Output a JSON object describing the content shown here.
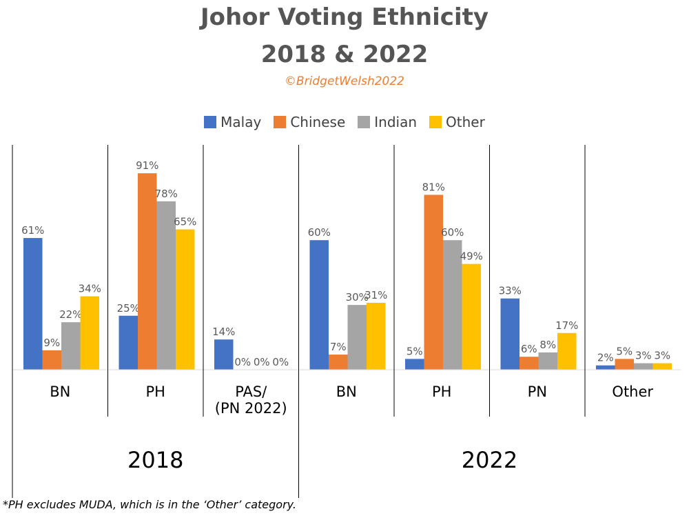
{
  "title_line1": "Johor Voting Ethnicity",
  "title_line2": "2018 & 2022",
  "credit": "©BridgetWelsh2022",
  "footnote": "*PH excludes MUDA, which is in the ‘Other’ category.",
  "colors": {
    "Malay": "#4472C4",
    "Chinese": "#ED7D31",
    "Indian": "#A5A5A5",
    "Other": "#FFC000"
  },
  "chart_data": {
    "type": "bar",
    "title": "Johor Voting Ethnicity 2018 & 2022",
    "series_names": [
      "Malay",
      "Chinese",
      "Indian",
      "Other"
    ],
    "groups": [
      {
        "label": "2018",
        "categories": [
          {
            "label": [
              "BN"
            ],
            "values": [
              61,
              9,
              22,
              34
            ]
          },
          {
            "label": [
              "PH"
            ],
            "values": [
              25,
              91,
              78,
              65
            ]
          },
          {
            "label": [
              "PAS/",
              "(PN 2022)"
            ],
            "values": [
              14,
              0,
              0,
              0
            ]
          }
        ]
      },
      {
        "label": "2022",
        "categories": [
          {
            "label": [
              "BN"
            ],
            "values": [
              60,
              7,
              30,
              31
            ]
          },
          {
            "label": [
              "PH"
            ],
            "values": [
              5,
              81,
              60,
              49
            ]
          },
          {
            "label": [
              "PN"
            ],
            "values": [
              33,
              6,
              8,
              17
            ]
          },
          {
            "label": [
              "Other"
            ],
            "values": [
              2,
              5,
              3,
              3
            ]
          }
        ]
      }
    ],
    "value_suffix": "%",
    "ylim": [
      0,
      100
    ],
    "legend_position": "top"
  }
}
